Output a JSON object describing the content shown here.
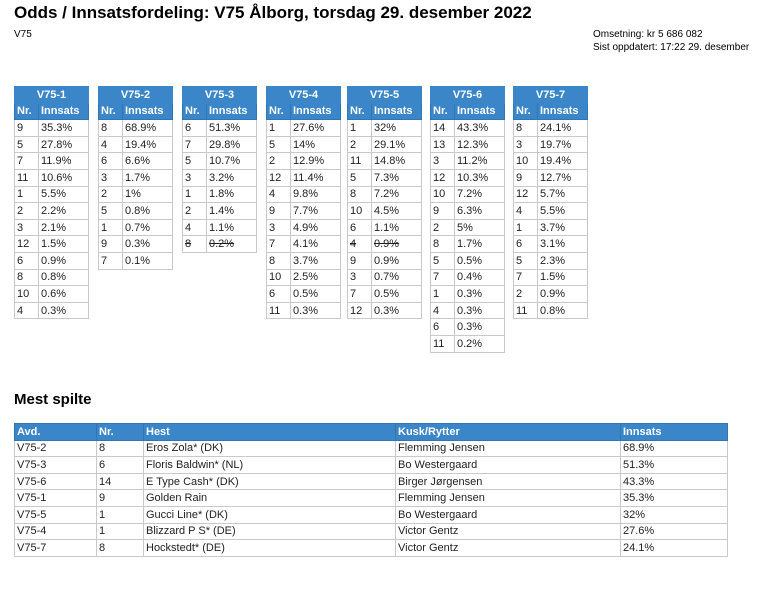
{
  "header": {
    "title": "Odds / Innsatsfordeling: V75 Ålborg, torsdag 29. desember 2022",
    "subtitle": "V75",
    "omsetning": "Omsetning: kr 5 686 082",
    "oppdatert": "Sist oppdatert: 17:22 29. desember"
  },
  "table_headers": {
    "nr": "Nr.",
    "innsats": "Innsats"
  },
  "races": [
    {
      "name": "V75-1",
      "rows": [
        {
          "nr": "9",
          "pct": "35.3%"
        },
        {
          "nr": "5",
          "pct": "27.8%"
        },
        {
          "nr": "7",
          "pct": "11.9%"
        },
        {
          "nr": "11",
          "pct": "10.6%"
        },
        {
          "nr": "1",
          "pct": "5.5%"
        },
        {
          "nr": "2",
          "pct": "2.2%"
        },
        {
          "nr": "3",
          "pct": "2.1%"
        },
        {
          "nr": "12",
          "pct": "1.5%"
        },
        {
          "nr": "6",
          "pct": "0.9%"
        },
        {
          "nr": "8",
          "pct": "0.8%"
        },
        {
          "nr": "10",
          "pct": "0.6%"
        },
        {
          "nr": "4",
          "pct": "0.3%"
        }
      ]
    },
    {
      "name": "V75-2",
      "rows": [
        {
          "nr": "8",
          "pct": "68.9%"
        },
        {
          "nr": "4",
          "pct": "19.4%"
        },
        {
          "nr": "6",
          "pct": "6.6%"
        },
        {
          "nr": "3",
          "pct": "1.7%"
        },
        {
          "nr": "2",
          "pct": "1%"
        },
        {
          "nr": "5",
          "pct": "0.8%"
        },
        {
          "nr": "1",
          "pct": "0.7%"
        },
        {
          "nr": "9",
          "pct": "0.3%"
        },
        {
          "nr": "7",
          "pct": "0.1%"
        }
      ]
    },
    {
      "name": "V75-3",
      "rows": [
        {
          "nr": "6",
          "pct": "51.3%"
        },
        {
          "nr": "7",
          "pct": "29.8%"
        },
        {
          "nr": "5",
          "pct": "10.7%"
        },
        {
          "nr": "3",
          "pct": "3.2%"
        },
        {
          "nr": "1",
          "pct": "1.8%"
        },
        {
          "nr": "2",
          "pct": "1.4%"
        },
        {
          "nr": "4",
          "pct": "1.1%"
        },
        {
          "nr": "8",
          "pct": "0.2%",
          "struck": true
        }
      ]
    },
    {
      "name": "V75-4",
      "rows": [
        {
          "nr": "1",
          "pct": "27.6%"
        },
        {
          "nr": "5",
          "pct": "14%"
        },
        {
          "nr": "2",
          "pct": "12.9%"
        },
        {
          "nr": "12",
          "pct": "11.4%"
        },
        {
          "nr": "4",
          "pct": "9.8%"
        },
        {
          "nr": "9",
          "pct": "7.7%"
        },
        {
          "nr": "3",
          "pct": "4.9%"
        },
        {
          "nr": "7",
          "pct": "4.1%"
        },
        {
          "nr": "8",
          "pct": "3.7%"
        },
        {
          "nr": "10",
          "pct": "2.5%"
        },
        {
          "nr": "6",
          "pct": "0.5%"
        },
        {
          "nr": "11",
          "pct": "0.3%"
        }
      ]
    },
    {
      "name": "V75-5",
      "rows": [
        {
          "nr": "1",
          "pct": "32%"
        },
        {
          "nr": "2",
          "pct": "29.1%"
        },
        {
          "nr": "11",
          "pct": "14.8%"
        },
        {
          "nr": "5",
          "pct": "7.3%"
        },
        {
          "nr": "8",
          "pct": "7.2%"
        },
        {
          "nr": "10",
          "pct": "4.5%"
        },
        {
          "nr": "6",
          "pct": "1.1%"
        },
        {
          "nr": "4",
          "pct": "0.9%",
          "struck": true
        },
        {
          "nr": "9",
          "pct": "0.9%"
        },
        {
          "nr": "3",
          "pct": "0.7%"
        },
        {
          "nr": "7",
          "pct": "0.5%"
        },
        {
          "nr": "12",
          "pct": "0.3%"
        }
      ]
    },
    {
      "name": "V75-6",
      "rows": [
        {
          "nr": "14",
          "pct": "43.3%"
        },
        {
          "nr": "13",
          "pct": "12.3%"
        },
        {
          "nr": "3",
          "pct": "11.2%"
        },
        {
          "nr": "12",
          "pct": "10.3%"
        },
        {
          "nr": "10",
          "pct": "7.2%"
        },
        {
          "nr": "9",
          "pct": "6.3%"
        },
        {
          "nr": "2",
          "pct": "5%"
        },
        {
          "nr": "8",
          "pct": "1.7%"
        },
        {
          "nr": "5",
          "pct": "0.5%"
        },
        {
          "nr": "7",
          "pct": "0.4%"
        },
        {
          "nr": "1",
          "pct": "0.3%"
        },
        {
          "nr": "4",
          "pct": "0.3%"
        },
        {
          "nr": "6",
          "pct": "0.3%"
        },
        {
          "nr": "11",
          "pct": "0.2%"
        }
      ]
    },
    {
      "name": "V75-7",
      "rows": [
        {
          "nr": "8",
          "pct": "24.1%"
        },
        {
          "nr": "3",
          "pct": "19.7%"
        },
        {
          "nr": "10",
          "pct": "19.4%"
        },
        {
          "nr": "9",
          "pct": "12.7%"
        },
        {
          "nr": "12",
          "pct": "5.7%"
        },
        {
          "nr": "4",
          "pct": "5.5%"
        },
        {
          "nr": "1",
          "pct": "3.7%"
        },
        {
          "nr": "6",
          "pct": "3.1%"
        },
        {
          "nr": "5",
          "pct": "2.3%"
        },
        {
          "nr": "7",
          "pct": "1.5%"
        },
        {
          "nr": "2",
          "pct": "0.9%"
        },
        {
          "nr": "11",
          "pct": "0.8%"
        }
      ]
    }
  ],
  "mest_spilte": {
    "title": "Mest spilte",
    "headers": {
      "avd": "Avd.",
      "nr": "Nr.",
      "hest": "Hest",
      "kusk": "Kusk/Rytter",
      "innsats": "Innsats"
    },
    "rows": [
      {
        "avd": "V75-2",
        "nr": "8",
        "hest": "Eros Zola* (DK)",
        "kusk": "Flemming Jensen",
        "innsats": "68.9%"
      },
      {
        "avd": "V75-3",
        "nr": "6",
        "hest": "Floris Baldwin* (NL)",
        "kusk": "Bo Westergaard",
        "innsats": "51.3%"
      },
      {
        "avd": "V75-6",
        "nr": "14",
        "hest": "E Type Cash* (DK)",
        "kusk": "Birger Jørgensen",
        "innsats": "43.3%"
      },
      {
        "avd": "V75-1",
        "nr": "9",
        "hest": "Golden Rain",
        "kusk": "Flemming Jensen",
        "innsats": "35.3%"
      },
      {
        "avd": "V75-5",
        "nr": "1",
        "hest": "Gucci Line* (DK)",
        "kusk": "Bo Westergaard",
        "innsats": "32%"
      },
      {
        "avd": "V75-4",
        "nr": "1",
        "hest": "Blizzard P S* (DE)",
        "kusk": "Victor Gentz",
        "innsats": "27.6%"
      },
      {
        "avd": "V75-7",
        "nr": "8",
        "hest": "Hockstedt* (DE)",
        "kusk": "Victor Gentz",
        "innsats": "24.1%"
      }
    ]
  }
}
